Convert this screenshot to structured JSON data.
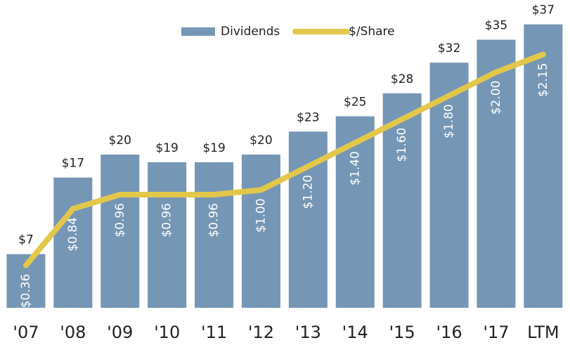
{
  "chart_data": {
    "type": "bar_line",
    "categories": [
      "'07",
      "'08",
      "'09",
      "'10",
      "'11",
      "'12",
      "'13",
      "'14",
      "'15",
      "'16",
      "'17",
      "LTM"
    ],
    "series": [
      {
        "name": "Dividends",
        "type": "bar",
        "color": "#7596b5",
        "values": [
          7,
          17,
          20,
          19,
          19,
          20,
          23,
          25,
          28,
          32,
          35,
          37
        ],
        "value_labels": [
          "$7",
          "$17",
          "$20",
          "$19",
          "$19",
          "$20",
          "$23",
          "$25",
          "$28",
          "$32",
          "$35",
          "$37"
        ]
      },
      {
        "name": "$/Share",
        "type": "line",
        "axis": "y2",
        "color": "#e2c74b",
        "values": [
          0.36,
          0.84,
          0.96,
          0.96,
          0.96,
          1.0,
          1.2,
          1.4,
          1.6,
          1.8,
          2.0,
          2.15
        ],
        "value_labels": [
          "$0.36",
          "$0.84",
          "$0.96",
          "$0.96",
          "$0.96",
          "$1.00",
          "$1.20",
          "$1.40",
          "$1.60",
          "$1.80",
          "$2.00",
          "$2.15"
        ]
      }
    ],
    "ylim": [
      0,
      40
    ],
    "y2lim": [
      0,
      2.6
    ],
    "legend": "top"
  }
}
